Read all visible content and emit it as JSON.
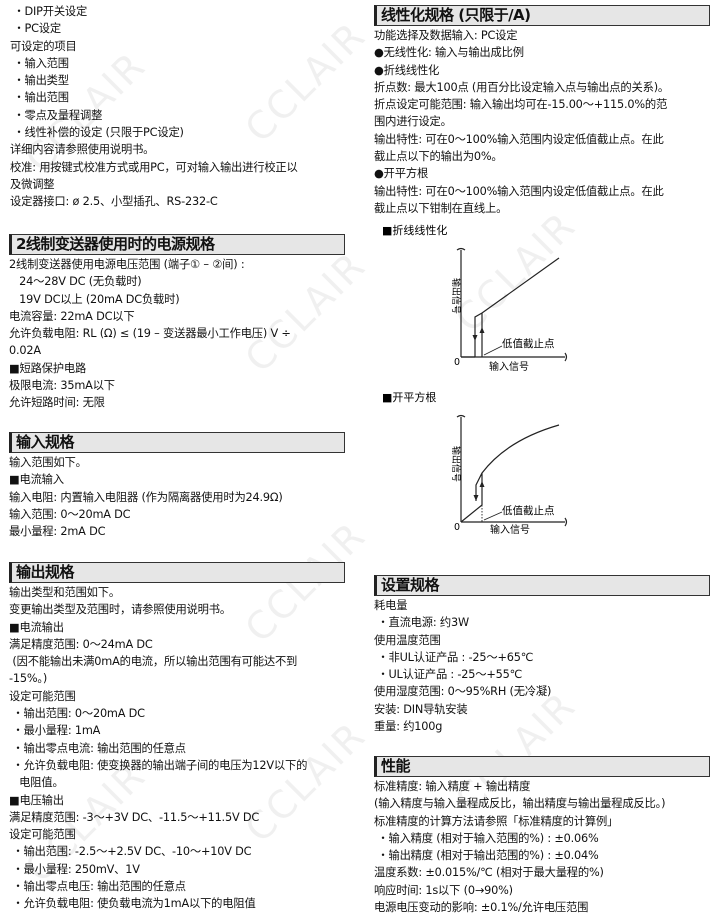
{
  "watermark": "CCLAIR",
  "left": {
    "intro": [
      " ・DIP开关设定",
      " ・PC设定",
      "可设定的项目",
      " ・输入范围",
      " ・输出类型",
      " ・输出范围",
      " ・零点及量程调整",
      " ・线性补偿的设定 (只限于PC设定)",
      "详细内容请参照使用说明书。",
      "校准: 用按键式校准方式或用PC，可对输入输出进行校正以",
      "及微调整",
      "设定器接口: ø 2.5、小型插孔、RS-232-C"
    ],
    "power": {
      "title": "2线制变送器使用时的电源规格",
      "lines": [
        "2线制变送器使用电源电压范围 (端子① – ②间) :",
        "   24～28V DC (无负载时)",
        "   19V DC以上 (20mA DC负载时)",
        "电流容量: 22mA DC以下",
        "允许负载电阻: RL (Ω) ≤ (19 – 变送器最小工作电压) V ÷",
        "0.02A",
        "■短路保护电路",
        "极限电流: 35mA以下",
        "允许短路时间: 无限"
      ]
    },
    "input": {
      "title": "输入规格",
      "lines": [
        "输入范围如下。",
        "■电流输入",
        "输入电阻: 内置输入电阻器 (作为隔离器使用时为24.9Ω)",
        "输入范围: 0～20mA DC",
        "最小量程: 2mA DC"
      ]
    },
    "output": {
      "title": "输出规格",
      "lines": [
        "输出类型和范围如下。",
        "变更输出类型及范围时，请参照使用说明书。",
        "■电流输出",
        "满足精度范围: 0～24mA DC",
        " (因不能输出未满0mA的电流，所以输出范围有可能达不到",
        "-15%。)",
        "设定可能范围",
        " ・输出范围: 0～20mA DC",
        " ・最小量程: 1mA",
        " ・输出零点电流: 输出范围的任意点",
        " ・允许负载电阻: 使变换器的输出端子间的电压为12V以下的",
        "   电阻值。",
        "■电压输出",
        "满足精度范围: -3～+3V DC、-11.5～+11.5V DC",
        "设定可能范围",
        " ・输出范围: -2.5～+2.5V DC、-10～+10V DC",
        " ・最小量程: 250mV、1V",
        " ・输出零点电压: 输出范围的任意点",
        " ・允许负载电阻: 使负载电流为1mA以下的电阻值"
      ]
    }
  },
  "right": {
    "linearize": {
      "title": "线性化规格 (只限于/A)",
      "lines": [
        "功能选择及数据输入: PC设定",
        "●无线性化: 输入与输出成比例",
        "●折线线性化",
        "折点数: 最大100点 (用百分比设定输入点与输出点的关系)。",
        "折点设定可能范围: 输入输出均可在-15.00～+115.0%的范",
        "围内进行设定。",
        "输出特性: 可在0～100%输入范围内设定低值截止点。在此",
        "截止点以下的输出为0%。",
        "●开平方根",
        "输出特性: 可在0～100%输入范围内设定低值截止点。在此",
        "截止点以下钳制在直线上。"
      ]
    },
    "diagrams": [
      {
        "caption": "■折线线性化",
        "ylabel": "输出信号",
        "xlabel": "输入信号",
        "origin": "0",
        "annotation": "低值截止点"
      },
      {
        "caption": "■开平方根",
        "ylabel": "输出信号",
        "xlabel": "输入信号",
        "origin": "0",
        "annotation": "低值截止点"
      }
    ],
    "install": {
      "title": "设置规格",
      "lines": [
        "耗电量",
        " ・直流电源: 约3W",
        "使用温度范围",
        " ・非UL认证产品 : -25～+65℃",
        " ・UL认证产品 : -25～+55℃",
        "使用湿度范围: 0～95%RH (无冷凝)",
        "安装: DIN导轨安装",
        "重量: 约100g"
      ]
    },
    "performance": {
      "title": "性能",
      "lines": [
        "标准精度: 输入精度 + 输出精度",
        "(输入精度与输入量程成反比，输出精度与输出量程成反比。)",
        "标准精度的计算方法请参照「标准精度的计算例」",
        " ・输入精度 (相对于输入范围的%) : ±0.06%",
        " ・输出精度 (相对于输出范围的%) : ±0.04%",
        "温度系数: ±0.015%/℃ (相对于最大量程的%)",
        "响应时间: 1s以下 (0→90%)",
        "电源电压变动的影响: ±0.1%/允许电压范围"
      ]
    }
  }
}
